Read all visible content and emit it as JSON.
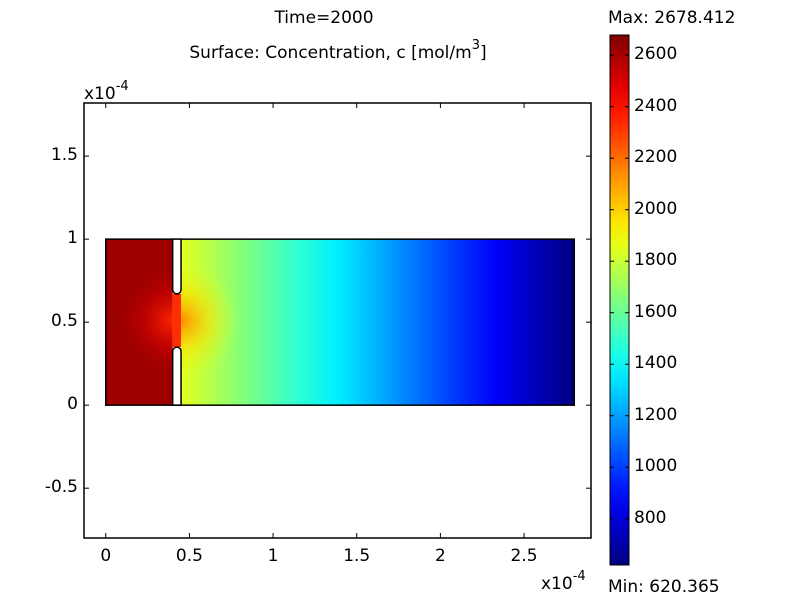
{
  "chart_data": {
    "type": "heatmap",
    "title": "Time=2000",
    "subtitle_prefix": "Surface: Concentration, c [mol/m",
    "subtitle_exp": "3",
    "subtitle_suffix": "]",
    "x_multiplier_base": "x10",
    "x_multiplier_exp": "-4",
    "y_multiplier_base": "x10",
    "y_multiplier_exp": "-4",
    "xlim": [
      -0.13,
      2.9
    ],
    "ylim": [
      -0.8,
      1.82
    ],
    "x_ticks": [
      "0",
      "0.5",
      "1",
      "1.5",
      "2",
      "2.5"
    ],
    "x_tick_values": [
      0,
      0.5,
      1,
      1.5,
      2,
      2.5
    ],
    "y_ticks": [
      "1.5",
      "1",
      "0.5",
      "0",
      "-0.5"
    ],
    "y_tick_values": [
      1.5,
      1,
      0.5,
      0,
      -0.5
    ],
    "domain": {
      "x": [
        0,
        2.8
      ],
      "y": [
        0,
        1
      ]
    },
    "slit": {
      "x": [
        0.4,
        0.45
      ],
      "gap_y": [
        0.35,
        0.67
      ]
    },
    "colorbar": {
      "max_label": "Max: 2678.412",
      "min_label": "Min: 620.365",
      "min": 620.365,
      "max": 2678.412,
      "ticks": [
        "2600",
        "2400",
        "2200",
        "2000",
        "1800",
        "1600",
        "1400",
        "1200",
        "1000",
        "800"
      ],
      "tick_values": [
        2600,
        2400,
        2200,
        2000,
        1800,
        1600,
        1400,
        1200,
        1000,
        800
      ],
      "colormap": "jet"
    },
    "concentration_profile": {
      "left_chamber_value": 2678.412,
      "slit_right_value": 1850,
      "right_end_value": 620.365
    }
  }
}
